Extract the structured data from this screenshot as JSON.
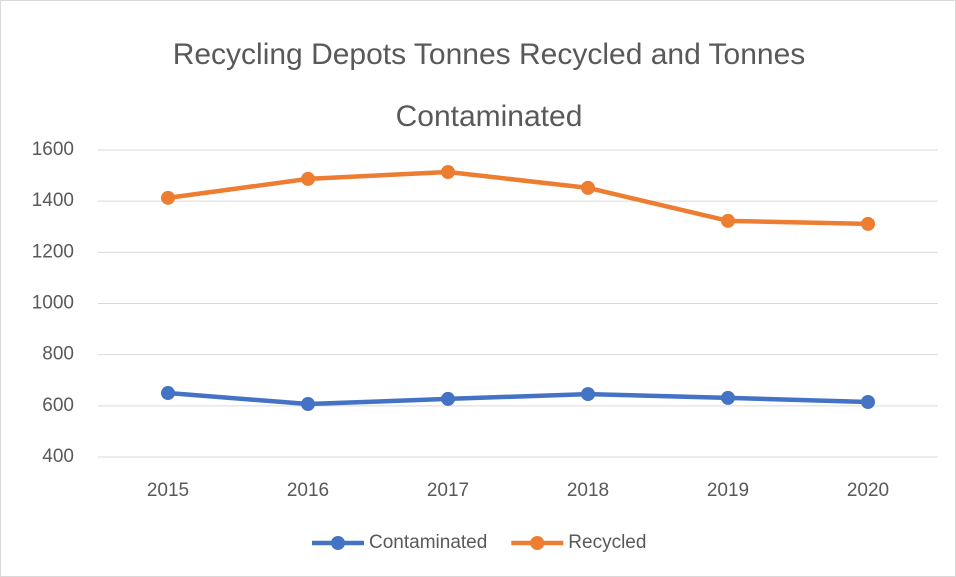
{
  "chart_data": {
    "type": "line",
    "title": "Recycling Depots Tonnes Recycled and Tonnes Contaminated",
    "categories": [
      "2015",
      "2016",
      "2017",
      "2018",
      "2019",
      "2020"
    ],
    "series": [
      {
        "name": "Contaminated",
        "color": "#4472c4",
        "values": [
          650,
          607,
          627,
          646,
          631,
          615
        ]
      },
      {
        "name": "Recycled",
        "color": "#ed7d31",
        "values": [
          1413,
          1487,
          1514,
          1452,
          1323,
          1311
        ]
      }
    ],
    "ylim": [
      400,
      1600
    ],
    "yticks": [
      400,
      600,
      800,
      1000,
      1200,
      1400,
      1600
    ],
    "grid": true,
    "legend": "bottom"
  }
}
